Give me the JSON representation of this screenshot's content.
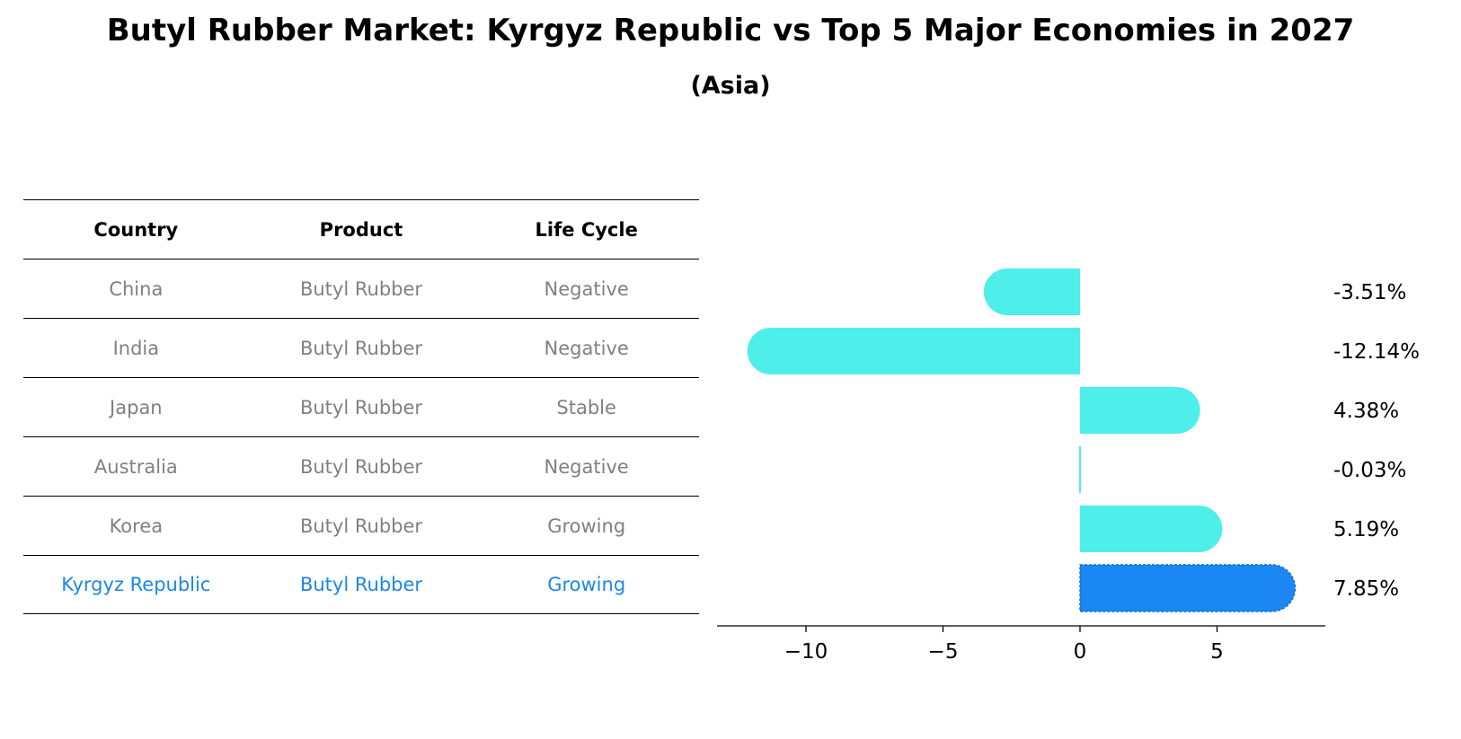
{
  "title": "Butyl Rubber Market: Kyrgyz Republic vs Top 5 Major Economies in 2027",
  "subtitle": "(Asia)",
  "table": {
    "headers": [
      "Country",
      "Product",
      "Life Cycle"
    ],
    "rows": [
      [
        "China",
        "Butyl Rubber",
        "Negative"
      ],
      [
        "India",
        "Butyl Rubber",
        "Negative"
      ],
      [
        "Japan",
        "Butyl Rubber",
        "Stable"
      ],
      [
        "Australia",
        "Butyl Rubber",
        "Negative"
      ],
      [
        "Korea",
        "Butyl Rubber",
        "Growing"
      ],
      [
        "Kyrgyz Republic",
        "Butyl Rubber",
        "Growing"
      ]
    ],
    "highlight_row": 5
  },
  "colors": {
    "bar": "#4eeeeb",
    "highlight": "#1b87f2",
    "highlight_text": "#1b87e6",
    "muted_text": "#808080"
  },
  "chart_data": {
    "type": "bar",
    "orientation": "horizontal",
    "categories": [
      "China",
      "India",
      "Japan",
      "Australia",
      "Korea",
      "Kyrgyz Republic"
    ],
    "values": [
      -3.51,
      -12.14,
      4.38,
      -0.03,
      5.19,
      7.85
    ],
    "value_labels": [
      "-3.51%",
      "-12.14%",
      "4.38%",
      "-0.03%",
      "5.19%",
      "7.85%"
    ],
    "highlight_index": 5,
    "xticks": [
      -10,
      -5,
      0,
      5
    ],
    "xtick_labels": [
      "−10",
      "−5",
      "0",
      "5"
    ],
    "xlim": [
      -13.2,
      8.8
    ],
    "grid": false
  }
}
